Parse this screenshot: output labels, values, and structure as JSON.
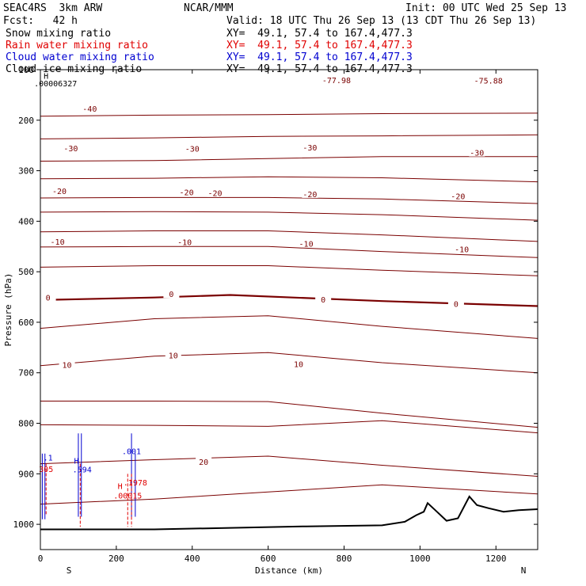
{
  "header": {
    "title": "SEAC4RS  3km ARW",
    "org": "NCAR/MMM",
    "init": "Init: 00 UTC Wed 25 Sep 13",
    "fcst": "Fcst:   42 h",
    "valid": "Valid: 18 UTC Thu 26 Sep 13 (13 CDT Thu 26 Sep 13)",
    "fields": [
      {
        "name": "Snow mixing ratio",
        "xy": "XY=  49.1, 57.4 to 167.4,477.3",
        "color": "#000000"
      },
      {
        "name": "Rain water mixing ratio",
        "xy": "XY=  49.1, 57.4 to 167.4,477.3",
        "color": "#e00000"
      },
      {
        "name": "Cloud water mixing ratio",
        "xy": "XY=  49.1, 57.4 to 167.4,477.3",
        "color": "#0000d0"
      },
      {
        "name": "Cloud ice mixing ratio",
        "xy": "XY=  49.1, 57.4 to 167.4,477.3",
        "color": "#000000"
      }
    ]
  },
  "chart_data": {
    "type": "line",
    "xlabel": "Distance (km)",
    "ylabel": "Pressure (hPa)",
    "xlim": [
      0,
      1310
    ],
    "ylim": [
      1050,
      100
    ],
    "x_ticks": [
      0,
      200,
      400,
      600,
      800,
      1000,
      1200
    ],
    "y_ticks": [
      100,
      200,
      300,
      400,
      500,
      600,
      700,
      800,
      900,
      1000
    ],
    "y_tick_labels": [
      "100",
      "200",
      "300",
      "400",
      "500",
      "600",
      "700",
      "800",
      "900",
      "1000"
    ],
    "x_end_labels": {
      "left": "S",
      "right": "N"
    },
    "y_scale": "linear",
    "contour_color": "#7a0000",
    "terrain_color": "#000000",
    "isotherms": [
      {
        "x": [
          0,
          300,
          600,
          900,
          1310
        ],
        "p": [
          192,
          190,
          189,
          187,
          186
        ]
      },
      {
        "x": [
          0,
          300,
          600,
          900,
          1310
        ],
        "p": [
          237,
          235,
          232,
          231,
          229
        ]
      },
      {
        "x": [
          0,
          300,
          600,
          900,
          1310
        ],
        "p": [
          281,
          280,
          276,
          272,
          272
        ]
      },
      {
        "x": [
          0,
          300,
          600,
          900,
          1310
        ],
        "p": [
          316,
          315,
          312,
          314,
          322
        ]
      },
      {
        "x": [
          0,
          300,
          600,
          900,
          1310
        ],
        "p": [
          354,
          353,
          353,
          356,
          365
        ]
      },
      {
        "x": [
          0,
          300,
          600,
          900,
          1310
        ],
        "p": [
          382,
          381,
          382,
          387,
          398
        ]
      },
      {
        "x": [
          0,
          300,
          600,
          900,
          1310
        ],
        "p": [
          421,
          419,
          419,
          427,
          440
        ]
      },
      {
        "x": [
          0,
          300,
          600,
          900,
          1310
        ],
        "p": [
          451,
          450,
          450,
          460,
          472
        ]
      },
      {
        "x": [
          0,
          300,
          600,
          900,
          1310
        ],
        "p": [
          491,
          488,
          488,
          497,
          508
        ]
      },
      {
        "x": [
          0,
          300,
          500,
          900,
          1310
        ],
        "p": [
          556,
          551,
          546,
          558,
          568
        ]
      },
      {
        "x": [
          0,
          300,
          600,
          900,
          1310
        ],
        "p": [
          612,
          593,
          587,
          608,
          632
        ]
      },
      {
        "x": [
          0,
          300,
          600,
          900,
          1310
        ],
        "p": [
          686,
          667,
          660,
          680,
          700
        ]
      },
      {
        "x": [
          0,
          300,
          600,
          900,
          1310
        ],
        "p": [
          756,
          756,
          757,
          780,
          808
        ]
      },
      {
        "x": [
          0,
          300,
          600,
          900,
          1310
        ],
        "p": [
          803,
          804,
          806,
          795,
          819
        ]
      },
      {
        "x": [
          0,
          300,
          600,
          900,
          1310
        ],
        "p": [
          880,
          872,
          865,
          883,
          905
        ]
      },
      {
        "x": [
          0,
          300,
          600,
          900,
          1310
        ],
        "p": [
          960,
          950,
          936,
          922,
          940
        ]
      }
    ],
    "terrain": {
      "x": [
        0,
        300,
        500,
        700,
        900,
        960,
        990,
        1010,
        1020,
        1040,
        1070,
        1100,
        1130,
        1150,
        1180,
        1220,
        1260,
        1310
      ],
      "p": [
        1010,
        1010,
        1007,
        1004,
        1002,
        995,
        982,
        975,
        958,
        972,
        993,
        988,
        945,
        962,
        968,
        975,
        972,
        970
      ]
    },
    "contour_labels": [
      {
        "text": "-77.98",
        "x": 780,
        "p": 120
      },
      {
        "text": "-75.88",
        "x": 1180,
        "p": 121
      },
      {
        "text": "-40",
        "x": 130,
        "p": 177
      },
      {
        "text": "-30",
        "x": 80,
        "p": 255
      },
      {
        "text": "-30",
        "x": 400,
        "p": 256
      },
      {
        "text": "-30",
        "x": 710,
        "p": 254
      },
      {
        "text": "-30",
        "x": 1150,
        "p": 264
      },
      {
        "text": "-20",
        "x": 50,
        "p": 340
      },
      {
        "text": "-20",
        "x": 385,
        "p": 342
      },
      {
        "text": "-20",
        "x": 460,
        "p": 344
      },
      {
        "text": "-20",
        "x": 710,
        "p": 346
      },
      {
        "text": "-20",
        "x": 1100,
        "p": 350
      },
      {
        "text": "-10",
        "x": 45,
        "p": 440
      },
      {
        "text": "-10",
        "x": 380,
        "p": 441
      },
      {
        "text": "-10",
        "x": 700,
        "p": 444
      },
      {
        "text": "-10",
        "x": 1110,
        "p": 455
      },
      {
        "text": "0",
        "x": 20,
        "p": 551
      },
      {
        "text": "0",
        "x": 345,
        "p": 544
      },
      {
        "text": "0",
        "x": 745,
        "p": 555
      },
      {
        "text": "0",
        "x": 1095,
        "p": 563
      },
      {
        "text": "10",
        "x": 70,
        "p": 684
      },
      {
        "text": "10",
        "x": 350,
        "p": 665
      },
      {
        "text": "10",
        "x": 680,
        "p": 682
      },
      {
        "text": "20",
        "x": 430,
        "p": 876
      }
    ],
    "annotations": [
      {
        "text": "H",
        "x": 15,
        "p": 118,
        "color": "#000000"
      },
      {
        "text": ".00006327",
        "x": 40,
        "p": 133,
        "color": "#000000"
      },
      {
        "text": ".1",
        "x": 20,
        "p": 874,
        "color": "#0000d0"
      },
      {
        "text": "H",
        "x": 95,
        "p": 880,
        "color": "#0000d0"
      },
      {
        "text": ".594",
        "x": 110,
        "p": 897,
        "color": "#0000d0"
      },
      {
        "text": ".001",
        "x": 240,
        "p": 861,
        "color": "#0000d0"
      },
      {
        "text": "H",
        "x": 210,
        "p": 930,
        "color": "#e00000"
      },
      {
        "text": ".1978",
        "x": 250,
        "p": 923,
        "color": "#e00000"
      },
      {
        "text": ".00015",
        "x": 230,
        "p": 949,
        "color": "#e00000"
      },
      {
        "text": "305",
        "x": 15,
        "p": 896,
        "color": "#e00000"
      }
    ]
  }
}
